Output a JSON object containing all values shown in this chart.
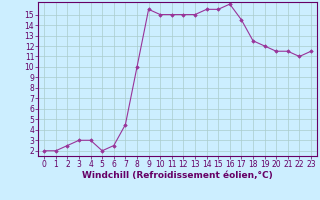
{
  "x": [
    0,
    1,
    2,
    3,
    4,
    5,
    6,
    7,
    8,
    9,
    10,
    11,
    12,
    13,
    14,
    15,
    16,
    17,
    18,
    19,
    20,
    21,
    22,
    23
  ],
  "y": [
    2,
    2,
    2.5,
    3,
    3,
    2,
    2.5,
    4.5,
    10,
    15.5,
    15,
    15,
    15,
    15,
    15.5,
    15.5,
    16,
    14.5,
    12.5,
    12,
    11.5,
    11.5,
    11,
    11.5
  ],
  "line_color": "#993399",
  "marker_color": "#993399",
  "bg_color": "#cceeff",
  "grid_color": "#aacccc",
  "xlabel": "Windchill (Refroidissement éolien,°C)",
  "xlabel_color": "#660066",
  "ylim": [
    1.5,
    16.2
  ],
  "xlim": [
    -0.5,
    23.5
  ],
  "yticks": [
    2,
    3,
    4,
    5,
    6,
    7,
    8,
    9,
    10,
    11,
    12,
    13,
    14,
    15
  ],
  "xticks": [
    0,
    1,
    2,
    3,
    4,
    5,
    6,
    7,
    8,
    9,
    10,
    11,
    12,
    13,
    14,
    15,
    16,
    17,
    18,
    19,
    20,
    21,
    22,
    23
  ],
  "tick_color": "#660066",
  "spine_color": "#660066",
  "font_size": 5.5,
  "xlabel_fontsize": 6.5
}
